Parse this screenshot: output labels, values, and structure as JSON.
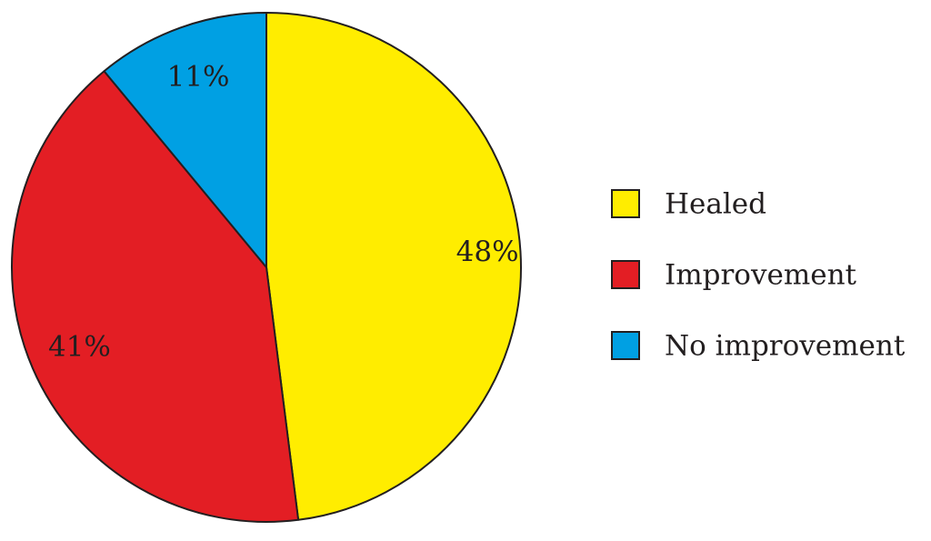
{
  "chart_data": {
    "type": "pie",
    "categories": [
      "Healed",
      "Improvement",
      "No improvement"
    ],
    "values": [
      48,
      41,
      11
    ],
    "labels": [
      "48%",
      "41%",
      "11%"
    ],
    "colors": [
      "#ffed00",
      "#e31e24",
      "#00a0e3"
    ],
    "start": "12 o'clock",
    "direction": "clockwise",
    "legend_position": "right"
  }
}
